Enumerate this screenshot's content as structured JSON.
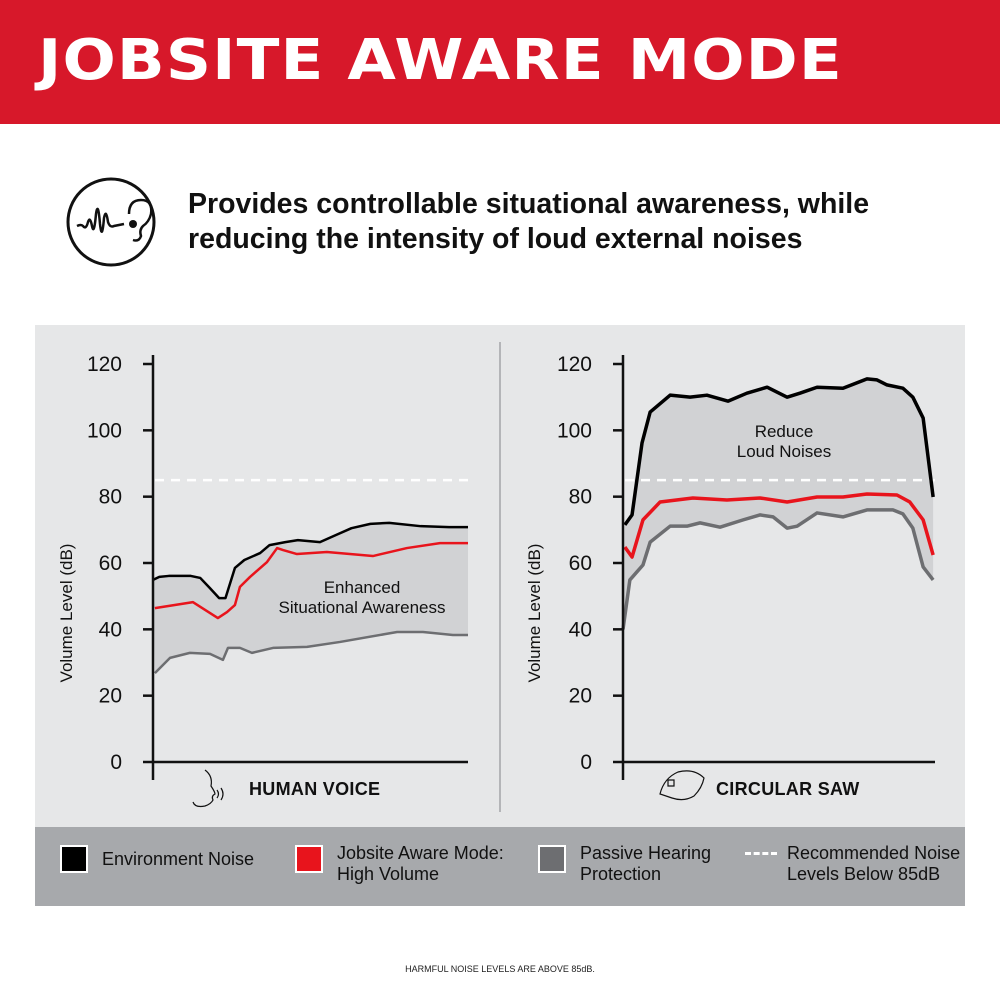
{
  "header": {
    "title": "JOBSITE AWARE MODE"
  },
  "subtitle": {
    "icon": "ear-soundwave-icon",
    "line1": "Provides controllable situational awareness, while",
    "line2": "reducing the intensity of loud external noises"
  },
  "colors": {
    "brand_red": "#d7182a",
    "environment": "#000000",
    "jobsite": "#e8141c",
    "passive": "#6d6e71",
    "threshold": "#ffffff",
    "panel": "#e6e7e8",
    "shade": "#d1d2d4",
    "legend_band": "#a7a9ac"
  },
  "chart_data": [
    {
      "type": "line",
      "category_label": "HUMAN VOICE",
      "category_icon": "human-voice-icon",
      "ylabel": "Volume Level (dB)",
      "ylim": [
        0,
        120
      ],
      "yticks": [
        0,
        20,
        40,
        60,
        80,
        100,
        120
      ],
      "xlim": [
        0,
        100
      ],
      "threshold_db": 85,
      "annotation": [
        "Enhanced",
        "Situational Awareness"
      ],
      "grid": false,
      "series": [
        {
          "name": "Environment Noise",
          "color": "#000000",
          "points": [
            [
              0,
              54.9
            ],
            [
              2,
              55.8
            ],
            [
              5,
              56.1
            ],
            [
              12,
              56.1
            ],
            [
              15,
              55.5
            ],
            [
              18,
              52.5
            ],
            [
              21,
              49.4
            ],
            [
              23,
              49.4
            ],
            [
              26,
              58.5
            ],
            [
              29,
              60.9
            ],
            [
              34,
              63
            ],
            [
              37,
              65.4
            ],
            [
              42,
              66.3
            ],
            [
              46,
              66.9
            ],
            [
              53,
              66.3
            ],
            [
              58,
              68.4
            ],
            [
              63,
              70.5
            ],
            [
              69,
              71.8
            ],
            [
              75,
              72.1
            ],
            [
              85,
              71.1
            ],
            [
              94,
              70.8
            ],
            [
              100,
              70.8
            ]
          ]
        },
        {
          "name": "Jobsite Aware Mode: High Volume",
          "color": "#e8141c",
          "points": [
            [
              0.6,
              46.4
            ],
            [
              12.7,
              48.2
            ],
            [
              20.6,
              43.4
            ],
            [
              23.5,
              45.2
            ],
            [
              26,
              47.3
            ],
            [
              27.6,
              52.8
            ],
            [
              30.8,
              55.8
            ],
            [
              36.2,
              60.3
            ],
            [
              39.4,
              64.5
            ],
            [
              41.3,
              63.9
            ],
            [
              45.7,
              62.7
            ],
            [
              55.2,
              63.3
            ],
            [
              69.8,
              62.1
            ],
            [
              80.6,
              64.5
            ],
            [
              91.1,
              66
            ],
            [
              100,
              66
            ]
          ]
        },
        {
          "name": "Passive Hearing Protection",
          "color": "#6d6e71",
          "points": [
            [
              0.6,
              26.8
            ],
            [
              5.4,
              31.4
            ],
            [
              11.7,
              32.9
            ],
            [
              18.1,
              32.6
            ],
            [
              22.2,
              30.8
            ],
            [
              23.8,
              34.4
            ],
            [
              27.6,
              34.4
            ],
            [
              31.4,
              32.9
            ],
            [
              38.1,
              34.4
            ],
            [
              48.9,
              34.7
            ],
            [
              59.4,
              36.2
            ],
            [
              77.5,
              39.2
            ],
            [
              85.7,
              39.2
            ],
            [
              95.2,
              38.3
            ],
            [
              100,
              38.3
            ]
          ]
        }
      ]
    },
    {
      "type": "line",
      "category_label": "CIRCULAR SAW",
      "category_icon": "circular-saw-icon",
      "ylabel": "Volume Level (dB)",
      "ylim": [
        0,
        120
      ],
      "yticks": [
        0,
        20,
        40,
        60,
        80,
        100,
        120
      ],
      "xlim": [
        0,
        100
      ],
      "threshold_db": 85,
      "annotation": [
        "Reduce",
        "Loud Noises"
      ],
      "grid": false,
      "series": [
        {
          "name": "Environment Noise",
          "color": "#000000",
          "points": [
            [
              0.6,
              71.5
            ],
            [
              2.9,
              74.5
            ],
            [
              6.1,
              96.2
            ],
            [
              8.7,
              105.5
            ],
            [
              15.1,
              110.6
            ],
            [
              21.5,
              110
            ],
            [
              26.9,
              110.6
            ],
            [
              33.7,
              108.8
            ],
            [
              39.7,
              111.2
            ],
            [
              46.2,
              113
            ],
            [
              52.6,
              110
            ],
            [
              56.7,
              111.2
            ],
            [
              62.2,
              113
            ],
            [
              70.5,
              112.7
            ],
            [
              78.2,
              115.5
            ],
            [
              81.4,
              115.2
            ],
            [
              84.6,
              113.7
            ],
            [
              89.7,
              112.7
            ],
            [
              92.9,
              110
            ],
            [
              96.2,
              103.7
            ],
            [
              99.4,
              79.9
            ]
          ]
        },
        {
          "name": "Jobsite Aware Mode: High Volume",
          "color": "#e8141c",
          "points": [
            [
              0.6,
              64.8
            ],
            [
              2.9,
              61.8
            ],
            [
              6.4,
              73
            ],
            [
              11.9,
              78.4
            ],
            [
              22.4,
              79.6
            ],
            [
              33.3,
              79
            ],
            [
              43.9,
              79.6
            ],
            [
              52.6,
              78.4
            ],
            [
              62.2,
              79.9
            ],
            [
              70.5,
              79.9
            ],
            [
              78.2,
              80.8
            ],
            [
              87.8,
              80.5
            ],
            [
              91.9,
              78.4
            ],
            [
              96.2,
              73
            ],
            [
              99.4,
              62.4
            ]
          ]
        },
        {
          "name": "Passive Hearing Protection",
          "color": "#6d6e71",
          "points": [
            [
              0,
              40
            ],
            [
              2.2,
              54.9
            ],
            [
              6.4,
              59.4
            ],
            [
              8.7,
              66.3
            ],
            [
              15.1,
              71.1
            ],
            [
              20.5,
              71.1
            ],
            [
              24.7,
              72.1
            ],
            [
              31.1,
              70.8
            ],
            [
              38.5,
              73
            ],
            [
              43.9,
              74.5
            ],
            [
              48.1,
              73.9
            ],
            [
              52.6,
              70.5
            ],
            [
              55.8,
              71.1
            ],
            [
              62.2,
              75.1
            ],
            [
              70.5,
              73.9
            ],
            [
              78.2,
              76
            ],
            [
              86.5,
              76
            ],
            [
              89.7,
              74.8
            ],
            [
              92.9,
              70.5
            ],
            [
              96.2,
              58.8
            ],
            [
              99.4,
              54.9
            ]
          ]
        }
      ]
    }
  ],
  "legend": [
    {
      "label1": "Environment Noise",
      "label2": "",
      "color": "#000000"
    },
    {
      "label1": "Jobsite Aware Mode:",
      "label2": "High Volume",
      "color": "#e8141c"
    },
    {
      "label1": "Passive Hearing",
      "label2": "Protection",
      "color": "#6d6e71"
    },
    {
      "label1": "Recommended Noise",
      "label2": "Levels Below 85dB",
      "color": "#ffffff",
      "style": "dashed"
    }
  ],
  "footer": "HARMFUL NOISE LEVELS ARE ABOVE 85dB."
}
